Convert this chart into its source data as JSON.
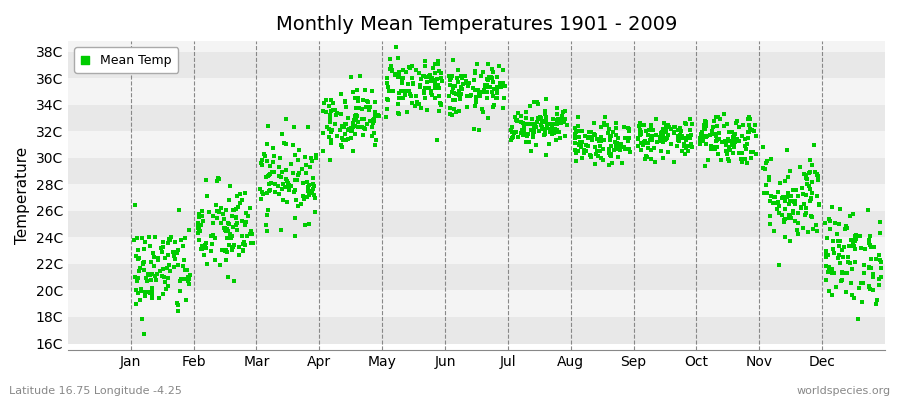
{
  "title": "Monthly Mean Temperatures 1901 - 2009",
  "ylabel": "Temperature",
  "xlabel_months": [
    "Jan",
    "Feb",
    "Mar",
    "Apr",
    "May",
    "Jun",
    "Jul",
    "Aug",
    "Sep",
    "Oct",
    "Nov",
    "Dec"
  ],
  "ytick_labels": [
    "16C",
    "18C",
    "20C",
    "22C",
    "24C",
    "26C",
    "28C",
    "30C",
    "32C",
    "34C",
    "36C",
    "38C"
  ],
  "ytick_values": [
    16,
    18,
    20,
    22,
    24,
    26,
    28,
    30,
    32,
    34,
    36,
    38
  ],
  "ylim": [
    15.5,
    38.8
  ],
  "marker_color": "#00CC00",
  "marker": "s",
  "marker_size": 12,
  "background_color": "#FFFFFF",
  "band_color_dark": "#E8E8E8",
  "band_color_light": "#F4F4F4",
  "legend_label": "Mean Temp",
  "bottom_left_text": "Latitude 16.75 Longitude -4.25",
  "bottom_right_text": "worldspecies.org",
  "title_fontsize": 14,
  "n_years": 109,
  "monthly_means": [
    21.5,
    24.5,
    28.5,
    33.0,
    35.5,
    35.0,
    32.5,
    31.0,
    31.5,
    31.5,
    27.0,
    22.5
  ],
  "monthly_stds": [
    1.8,
    1.8,
    1.6,
    1.2,
    1.2,
    1.0,
    0.8,
    0.8,
    0.8,
    1.0,
    1.8,
    1.8
  ]
}
